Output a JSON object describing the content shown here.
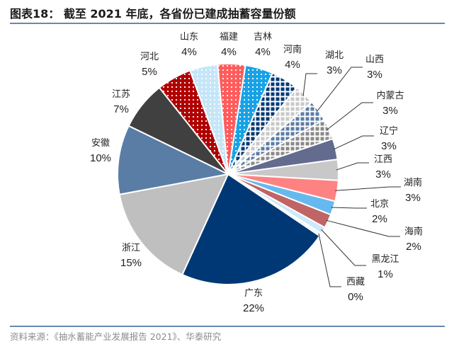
{
  "title": "图表18： 截至 2021 年底，各省份已建成抽蓄容量份额",
  "source": "资料来源：《抽水蓄能产业发展报告 2021》、华泰研究",
  "chart_data": {
    "type": "pie",
    "title": "",
    "start_slice": "广东",
    "direction": "clockwise",
    "slices": [
      {
        "name": "广东",
        "label": "22%",
        "value": 22,
        "color": "#003876",
        "fill": "solid"
      },
      {
        "name": "浙江",
        "label": "15%",
        "value": 15,
        "color": "#bfbfbf",
        "fill": "solid"
      },
      {
        "name": "安徽",
        "label": "10%",
        "value": 10,
        "color": "#5a7da6",
        "fill": "solid"
      },
      {
        "name": "江苏",
        "label": "7%",
        "value": 7,
        "color": "#404040",
        "fill": "solid"
      },
      {
        "name": "河北",
        "label": "5%",
        "value": 5,
        "color": "#b00000",
        "fill": "dots"
      },
      {
        "name": "山东",
        "label": "4%",
        "value": 4,
        "color": "#c4e6f8",
        "fill": "dots"
      },
      {
        "name": "福建",
        "label": "4%",
        "value": 4,
        "color": "#ff5c5c",
        "fill": "dots"
      },
      {
        "name": "吉林",
        "label": "4%",
        "value": 4,
        "color": "#18a2e6",
        "fill": "dots"
      },
      {
        "name": "河南",
        "label": "4%",
        "value": 4,
        "color": "#003876",
        "fill": "crosshatch"
      },
      {
        "name": "湖北",
        "label": "3%",
        "value": 3,
        "color": "#c8c8c8",
        "fill": "crosshatch"
      },
      {
        "name": "山西",
        "label": "3%",
        "value": 3,
        "color": "#5a7da6",
        "fill": "crosshatch"
      },
      {
        "name": "内蒙古",
        "label": "3%",
        "value": 3,
        "color": "#8a8a8a",
        "fill": "crosshatch"
      },
      {
        "name": "辽宁",
        "label": "3%",
        "value": 3,
        "color": "#636b8f",
        "fill": "solid"
      },
      {
        "name": "江西",
        "label": "3%",
        "value": 3,
        "color": "#c8c8c8",
        "fill": "solid"
      },
      {
        "name": "湖南",
        "label": "3%",
        "value": 3,
        "color": "#ff8282",
        "fill": "solid"
      },
      {
        "name": "北京",
        "label": "2%",
        "value": 2,
        "color": "#66b9ee",
        "fill": "solid"
      },
      {
        "name": "海南",
        "label": "2%",
        "value": 2,
        "color": "#c06464",
        "fill": "solid"
      },
      {
        "name": "黑龙江",
        "label": "1%",
        "value": 1,
        "color": "#cde9fa",
        "fill": "solid"
      },
      {
        "name": "西藏",
        "label": "0%",
        "value": 0.4,
        "color": "#e8f4fc",
        "fill": "solid"
      }
    ]
  }
}
